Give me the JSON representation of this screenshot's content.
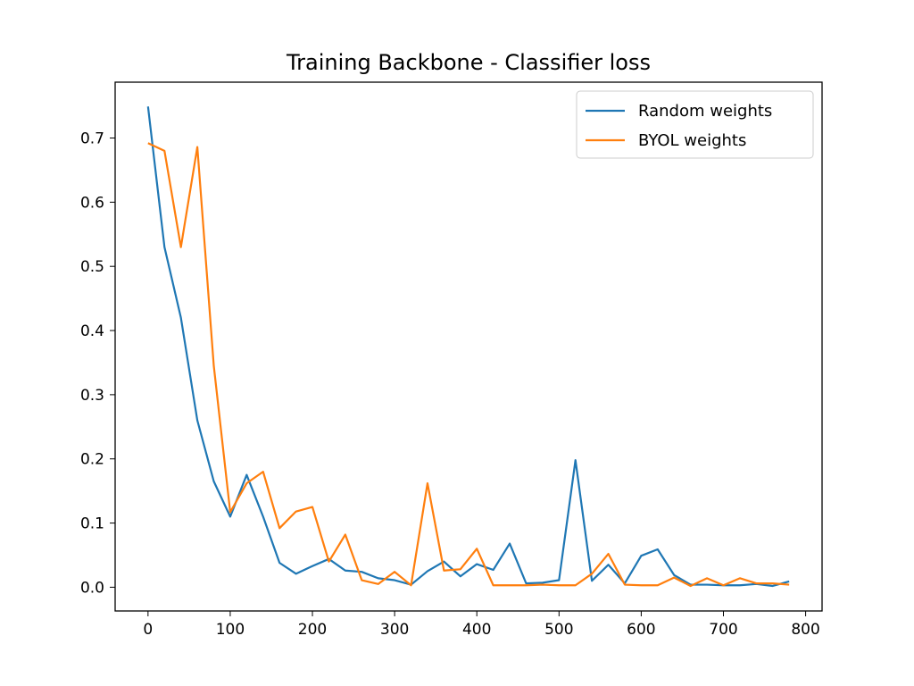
{
  "chart_data": {
    "type": "line",
    "title": "Training Backbone - Classifier loss",
    "xlabel": "",
    "ylabel": "",
    "xlim": [
      -40,
      820
    ],
    "ylim": [
      -0.037,
      0.787
    ],
    "xticks": [
      0,
      100,
      200,
      300,
      400,
      500,
      600,
      700,
      800
    ],
    "yticks": [
      0.0,
      0.1,
      0.2,
      0.3,
      0.4,
      0.5,
      0.6,
      0.7
    ],
    "xtick_labels": [
      "0",
      "100",
      "200",
      "300",
      "400",
      "500",
      "600",
      "700",
      "800"
    ],
    "ytick_labels": [
      "0.0",
      "0.1",
      "0.2",
      "0.3",
      "0.4",
      "0.5",
      "0.6",
      "0.7"
    ],
    "grid": false,
    "legend_position": "top-right",
    "x": [
      0,
      20,
      40,
      60,
      80,
      100,
      120,
      140,
      160,
      180,
      200,
      220,
      240,
      260,
      280,
      300,
      320,
      340,
      360,
      380,
      400,
      420,
      440,
      460,
      480,
      500,
      520,
      540,
      560,
      580,
      600,
      620,
      640,
      660,
      680,
      700,
      720,
      740,
      760,
      780
    ],
    "series": [
      {
        "name": "Random weights",
        "color": "#1f77b4",
        "values": [
          0.749,
          0.53,
          0.42,
          0.26,
          0.165,
          0.11,
          0.175,
          0.11,
          0.038,
          0.021,
          0.033,
          0.044,
          0.026,
          0.024,
          0.014,
          0.011,
          0.004,
          0.025,
          0.04,
          0.017,
          0.036,
          0.027,
          0.068,
          0.006,
          0.007,
          0.011,
          0.198,
          0.01,
          0.035,
          0.006,
          0.049,
          0.059,
          0.019,
          0.004,
          0.004,
          0.003,
          0.003,
          0.005,
          0.002,
          0.009
        ]
      },
      {
        "name": "BYOL weights",
        "color": "#ff7f0e",
        "values": [
          0.692,
          0.68,
          0.53,
          0.686,
          0.345,
          0.117,
          0.162,
          0.18,
          0.092,
          0.118,
          0.125,
          0.04,
          0.082,
          0.011,
          0.005,
          0.024,
          0.003,
          0.162,
          0.026,
          0.028,
          0.06,
          0.003,
          0.003,
          0.003,
          0.004,
          0.003,
          0.003,
          0.021,
          0.052,
          0.004,
          0.003,
          0.003,
          0.015,
          0.002,
          0.014,
          0.003,
          0.014,
          0.006,
          0.006,
          0.004
        ]
      }
    ]
  }
}
